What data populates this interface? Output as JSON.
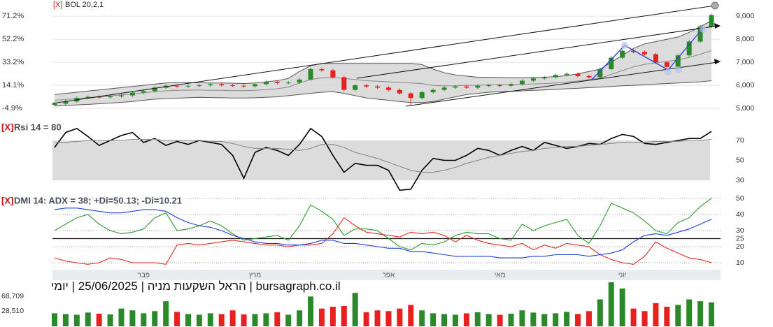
{
  "chart_data": [
    {
      "type": "candlestick",
      "marker": "[X]",
      "title": "BOL 20,2,1",
      "categories": [
        null,
        null,
        null,
        null,
        null,
        null,
        null,
        null,
        "פבר",
        null,
        null,
        null,
        null,
        null,
        null,
        null,
        null,
        null,
        "מרץ",
        null,
        null,
        null,
        null,
        null,
        null,
        null,
        null,
        null,
        null,
        null,
        "אפר",
        null,
        null,
        null,
        null,
        null,
        null,
        null,
        null,
        null,
        "מאי",
        null,
        null,
        null,
        null,
        null,
        null,
        null,
        null,
        null,
        null,
        "יוני",
        null,
        null,
        null,
        null,
        null,
        null,
        null,
        null
      ],
      "open": [
        5150,
        5200,
        5300,
        5450,
        5500,
        5480,
        5520,
        5560,
        5680,
        5750,
        5900,
        5980,
        5950,
        5980,
        6000,
        6050,
        6000,
        5980,
        5960,
        6050,
        6150,
        6100,
        6120,
        6250,
        6700,
        6650,
        6350,
        5800,
        6000,
        5950,
        5900,
        5800,
        5650,
        5450,
        5700,
        5800,
        5900,
        5950,
        5900,
        5980,
        6000,
        5980,
        6050,
        6200,
        6300,
        6350,
        6450,
        6500,
        6400,
        6350,
        6700,
        7200,
        7500,
        7450,
        7350,
        7000,
        6800,
        7300,
        7900,
        8550
      ],
      "high": [
        5260,
        5360,
        5510,
        5560,
        5560,
        5580,
        5620,
        5740,
        5810,
        5960,
        6040,
        6040,
        6040,
        6060,
        6110,
        6110,
        6060,
        6040,
        6110,
        6210,
        6210,
        6180,
        6310,
        6760,
        6760,
        6710,
        6410,
        6060,
        6060,
        6010,
        5960,
        5860,
        5710,
        5760,
        5860,
        5960,
        6010,
        6010,
        6040,
        6060,
        6060,
        6110,
        6260,
        6360,
        6410,
        6510,
        6560,
        6560,
        6460,
        6760,
        7260,
        7560,
        7560,
        7510,
        7410,
        7060,
        7360,
        7960,
        8610,
        9110
      ],
      "low": [
        5090,
        5140,
        5240,
        5390,
        5420,
        5420,
        5460,
        5500,
        5620,
        5690,
        5840,
        5890,
        5890,
        5920,
        5940,
        5940,
        5920,
        5900,
        5900,
        5990,
        6040,
        6040,
        6060,
        6190,
        6590,
        6290,
        5740,
        5740,
        5890,
        5840,
        5740,
        5590,
        5100,
        5390,
        5640,
        5740,
        5840,
        5840,
        5840,
        5920,
        5920,
        5920,
        5990,
        6140,
        6240,
        6290,
        6390,
        6340,
        6290,
        6290,
        6640,
        7140,
        7390,
        7290,
        6940,
        6740,
        6740,
        7240,
        7840,
        8490
      ],
      "close": [
        5200,
        5300,
        5450,
        5500,
        5480,
        5520,
        5560,
        5680,
        5750,
        5900,
        5980,
        5950,
        5980,
        6000,
        6050,
        6000,
        5980,
        5960,
        6050,
        6150,
        6100,
        6120,
        6250,
        6700,
        6650,
        6350,
        5800,
        6000,
        5950,
        5900,
        5800,
        5650,
        5450,
        5700,
        5800,
        5900,
        5950,
        5900,
        5980,
        6000,
        5980,
        6050,
        6200,
        6300,
        6350,
        6450,
        6500,
        6400,
        6350,
        6700,
        7200,
        7500,
        7450,
        7350,
        7000,
        6800,
        7300,
        7900,
        8550,
        9050
      ],
      "up_color": "#2a8a2a",
      "down_color": "#e8201f",
      "bands": [
        {
          "color": "#555555",
          "values": [
            5600,
            5650,
            5700,
            5750,
            5800,
            5850,
            5900,
            5950,
            6000,
            6050,
            6100,
            6120,
            6120,
            6110,
            6100,
            6100,
            6090,
            6080,
            6100,
            6150,
            6200,
            6300,
            6600,
            6850,
            6950,
            6950,
            6950,
            6950,
            6950,
            6950,
            6950,
            6950,
            6950,
            6900,
            6700,
            6550,
            6450,
            6400,
            6350,
            6350,
            6340,
            6330,
            6330,
            6340,
            6350,
            6380,
            6420,
            6500,
            6600,
            6700,
            7000,
            7300,
            7600,
            7800,
            7900,
            8000,
            8100,
            8300,
            8550,
            8800
          ]
        },
        {
          "color": "#888888",
          "values": [
            5350,
            5385,
            5425,
            5460,
            5500,
            5540,
            5580,
            5625,
            5675,
            5725,
            5760,
            5780,
            5790,
            5795,
            5785,
            5780,
            5770,
            5765,
            5780,
            5815,
            5850,
            5925,
            6100,
            6250,
            6325,
            6335,
            6300,
            6250,
            6200,
            6175,
            6150,
            6125,
            6100,
            6075,
            6000,
            5975,
            5975,
            6000,
            6000,
            6025,
            6030,
            6035,
            6045,
            6060,
            6075,
            6100,
            6135,
            6185,
            6250,
            6310,
            6475,
            6640,
            6800,
            6910,
            6975,
            7040,
            7100,
            7210,
            7350,
            7500
          ]
        },
        {
          "color": "#555555",
          "values": [
            5100,
            5120,
            5150,
            5170,
            5200,
            5230,
            5260,
            5300,
            5350,
            5400,
            5420,
            5440,
            5460,
            5480,
            5470,
            5460,
            5450,
            5450,
            5460,
            5480,
            5500,
            5550,
            5600,
            5650,
            5700,
            5720,
            5650,
            5550,
            5450,
            5400,
            5350,
            5300,
            5250,
            5250,
            5300,
            5400,
            5500,
            5600,
            5650,
            5700,
            5720,
            5740,
            5760,
            5780,
            5800,
            5820,
            5850,
            5870,
            5900,
            5920,
            5950,
            5980,
            6000,
            6020,
            6050,
            6080,
            6100,
            6120,
            6150,
            6200
          ]
        }
      ],
      "band_fill": "#d6d6d6",
      "ylim": [
        4850,
        9400
      ],
      "yticks": [
        {
          "value": 5000,
          "label": "5,000"
        },
        {
          "value": 6000,
          "label": "6,000"
        },
        {
          "value": 7000,
          "label": "7,000"
        },
        {
          "value": 8000,
          "label": "8,000"
        },
        {
          "value": 9000,
          "label": "9,000"
        }
      ],
      "y2lim": [
        -7.8,
        78.7
      ],
      "y2ticks": [
        {
          "value": -4.9,
          "label": "-4.9%"
        },
        {
          "value": 14.1,
          "label": "14.1%"
        },
        {
          "value": 33.2,
          "label": "33.2%"
        },
        {
          "value": 52.2,
          "label": "52.2%"
        },
        {
          "value": 71.2,
          "label": "71.2%"
        }
      ],
      "grid": true
    },
    {
      "type": "line",
      "marker": "[X]",
      "title": "Rsi 14 = 80",
      "series": [
        {
          "color": "#000000",
          "values": [
            63,
            78,
            82,
            74,
            65,
            70,
            75,
            78,
            68,
            72,
            65,
            69,
            66,
            70,
            68,
            66,
            55,
            32,
            58,
            63,
            60,
            55,
            66,
            82,
            74,
            55,
            38,
            47,
            45,
            45,
            40,
            20,
            21,
            40,
            52,
            50,
            50,
            55,
            62,
            60,
            55,
            60,
            64,
            60,
            68,
            65,
            62,
            64,
            67,
            66,
            72,
            76,
            74,
            67,
            66,
            68,
            70,
            72,
            72,
            79
          ]
        },
        {
          "color": "#8a8a8a",
          "values": [
            68,
            68,
            69,
            70,
            70,
            70,
            70,
            71,
            71,
            71,
            70,
            70,
            70,
            70,
            69,
            69,
            67,
            64,
            62,
            62,
            62,
            61,
            60,
            62,
            66,
            66,
            63,
            58,
            55,
            52,
            48,
            44,
            40,
            38,
            38,
            40,
            43,
            47,
            50,
            53,
            55,
            57,
            59,
            60,
            62,
            63,
            64,
            64,
            65,
            66,
            67,
            68,
            68,
            68,
            69,
            69,
            69,
            70,
            70,
            71
          ]
        }
      ],
      "band_fill": "#dcdcdc",
      "ylim": [
        18,
        86
      ],
      "yticks": [
        30,
        50,
        70
      ]
    },
    {
      "type": "line",
      "marker": "[X]",
      "title": "DMI 14: ADX = 38; +Di=50.13; -Di=10.21",
      "series": [
        {
          "color": "#2e9a2e",
          "values": [
            30,
            34,
            38,
            40,
            34,
            30,
            28,
            29,
            31,
            38,
            41,
            30,
            31,
            33,
            36,
            33,
            28,
            24,
            25,
            26,
            27,
            24,
            33,
            46,
            42,
            37,
            27,
            31,
            31,
            30,
            25,
            20,
            18,
            22,
            21,
            23,
            27,
            29,
            28,
            28,
            25,
            24,
            34,
            30,
            33,
            35,
            37,
            27,
            22,
            33,
            47,
            44,
            41,
            36,
            30,
            28,
            35,
            38,
            45,
            50
          ]
        },
        {
          "color": "#e02a20",
          "values": [
            13,
            11,
            10,
            9,
            10,
            13,
            12,
            10,
            10,
            10,
            9,
            21,
            22,
            21,
            22,
            23,
            24,
            23,
            22,
            21,
            21,
            20,
            21,
            21,
            22,
            28,
            38,
            33,
            29,
            28,
            27,
            26,
            29,
            28,
            29,
            27,
            23,
            27,
            24,
            22,
            21,
            20,
            22,
            18,
            21,
            19,
            22,
            21,
            20,
            15,
            12,
            10,
            9,
            14,
            23,
            19,
            16,
            13,
            12,
            10
          ]
        },
        {
          "color": "#1f3fd6",
          "values": [
            43,
            44,
            44,
            43,
            42,
            41,
            41,
            42,
            43,
            43,
            42,
            38,
            35,
            33,
            32,
            30,
            27,
            25,
            23,
            22,
            22,
            21,
            21,
            22,
            24,
            24,
            22,
            22,
            21,
            20,
            19,
            19,
            17,
            17,
            16,
            15,
            14,
            14,
            14,
            14,
            13,
            13,
            13,
            14,
            14,
            15,
            15,
            15,
            14,
            15,
            16,
            18,
            23,
            27,
            28,
            27,
            29,
            31,
            34,
            37
          ]
        }
      ],
      "reference_line": 25,
      "ylim": [
        6,
        52
      ],
      "yticks": [
        10,
        20,
        25,
        30,
        40,
        50
      ],
      "grid": "dotted"
    },
    {
      "type": "bar",
      "values": [
        22000,
        20000,
        18000,
        24000,
        21000,
        19000,
        35000,
        30000,
        22000,
        28000,
        55000,
        26000,
        20000,
        18000,
        22000,
        20000,
        30000,
        19000,
        20000,
        22000,
        25000,
        18000,
        30000,
        68000,
        35000,
        40000,
        42000,
        78000,
        25000,
        30000,
        28000,
        35000,
        45000,
        30000,
        22000,
        20000,
        18000,
        22000,
        25000,
        20000,
        18000,
        21000,
        30000,
        24000,
        20000,
        22000,
        26000,
        20000,
        28000,
        60000,
        107000,
        90000,
        35000,
        28000,
        50000,
        40000,
        45000,
        60000,
        55000,
        52000
      ],
      "ylim": [
        -13600,
        114600
      ],
      "yticks": [
        {
          "value": 28510,
          "label": "28,510"
        },
        {
          "value": 68709,
          "label": "68,709"
        }
      ],
      "tick_side": "left"
    }
  ],
  "caption": "bursagraph.co.il | הראל השקעות מניה | 25/06/2025 | יומי"
}
